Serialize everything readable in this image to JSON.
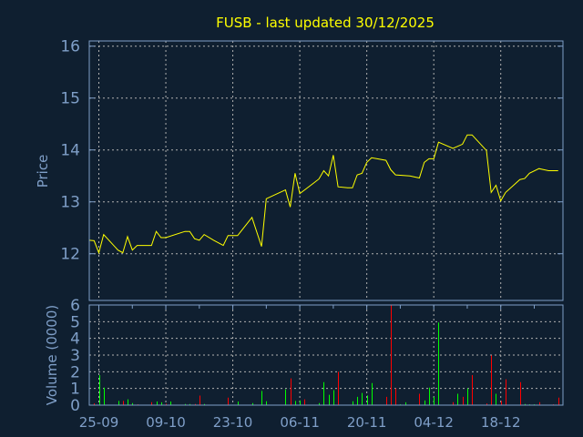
{
  "chart_data": [
    {
      "type": "line",
      "title": "FUSB - last updated 30/12/2025",
      "ylabel": "Price",
      "xlabel": "",
      "xlim": [
        "2025-09-23",
        "2025-12-31"
      ],
      "ylim": [
        11.1,
        16.1
      ],
      "yticks": [
        12,
        13,
        14,
        15,
        16
      ],
      "grid": true,
      "colors": {
        "line": "#ffff00",
        "axis": "#7f9fc8",
        "grid": "#b0b0b0",
        "background": "#0f1f30",
        "title": "#ffff00"
      },
      "points": [
        [
          "2025-09-23",
          12.26
        ],
        [
          "2025-09-24",
          12.25
        ],
        [
          "2025-09-25",
          12.02
        ],
        [
          "2025-09-26",
          12.37
        ],
        [
          "2025-09-29",
          12.07
        ],
        [
          "2025-09-30",
          12.02
        ],
        [
          "2025-10-01",
          12.33
        ],
        [
          "2025-10-02",
          12.07
        ],
        [
          "2025-10-03",
          12.16
        ],
        [
          "2025-10-06",
          12.16
        ],
        [
          "2025-10-07",
          12.43
        ],
        [
          "2025-10-08",
          12.31
        ],
        [
          "2025-10-09",
          12.31
        ],
        [
          "2025-10-13",
          12.43
        ],
        [
          "2025-10-14",
          12.43
        ],
        [
          "2025-10-15",
          12.29
        ],
        [
          "2025-10-16",
          12.26
        ],
        [
          "2025-10-17",
          12.37
        ],
        [
          "2025-10-19",
          12.26
        ],
        [
          "2025-10-21",
          12.16
        ],
        [
          "2025-10-22",
          12.35
        ],
        [
          "2025-10-24",
          12.35
        ],
        [
          "2025-10-27",
          12.7
        ],
        [
          "2025-10-29",
          12.14
        ],
        [
          "2025-10-30",
          13.06
        ],
        [
          "2025-11-03",
          13.23
        ],
        [
          "2025-11-04",
          12.9
        ],
        [
          "2025-11-05",
          13.55
        ],
        [
          "2025-11-06",
          13.16
        ],
        [
          "2025-11-07",
          13.23
        ],
        [
          "2025-11-09",
          13.37
        ],
        [
          "2025-11-10",
          13.44
        ],
        [
          "2025-11-11",
          13.6
        ],
        [
          "2025-11-12",
          13.5
        ],
        [
          "2025-11-13",
          13.9
        ],
        [
          "2025-11-14",
          13.29
        ],
        [
          "2025-11-16",
          13.27
        ],
        [
          "2025-11-17",
          13.27
        ],
        [
          "2025-11-18",
          13.52
        ],
        [
          "2025-11-19",
          13.55
        ],
        [
          "2025-11-20",
          13.76
        ],
        [
          "2025-11-21",
          13.85
        ],
        [
          "2025-11-24",
          13.8
        ],
        [
          "2025-11-25",
          13.62
        ],
        [
          "2025-11-26",
          13.52
        ],
        [
          "2025-11-29",
          13.5
        ],
        [
          "2025-12-01",
          13.46
        ],
        [
          "2025-12-02",
          13.76
        ],
        [
          "2025-12-03",
          13.83
        ],
        [
          "2025-12-04",
          13.83
        ],
        [
          "2025-12-05",
          14.15
        ],
        [
          "2025-12-08",
          14.03
        ],
        [
          "2025-12-10",
          14.11
        ],
        [
          "2025-12-11",
          14.29
        ],
        [
          "2025-12-12",
          14.29
        ],
        [
          "2025-12-15",
          13.99
        ],
        [
          "2025-12-16",
          13.18
        ],
        [
          "2025-12-17",
          13.32
        ],
        [
          "2025-12-18",
          13.02
        ],
        [
          "2025-12-19",
          13.18
        ],
        [
          "2025-12-22",
          13.43
        ],
        [
          "2025-12-23",
          13.45
        ],
        [
          "2025-12-24",
          13.55
        ],
        [
          "2025-12-26",
          13.64
        ],
        [
          "2025-12-27",
          13.62
        ],
        [
          "2025-12-28",
          13.6
        ],
        [
          "2025-12-30",
          13.6
        ]
      ]
    },
    {
      "type": "bar",
      "ylabel": "Volume (0000)",
      "xlabel": "",
      "xlim": [
        "2025-09-23",
        "2025-12-31"
      ],
      "ylim": [
        0,
        6
      ],
      "yticks": [
        0,
        1,
        2,
        3,
        4,
        5,
        6
      ],
      "xticks": [
        "25-09",
        "09-10",
        "23-10",
        "06-11",
        "20-11",
        "04-12",
        "18-12"
      ],
      "grid": true,
      "colors": {
        "up": "#00ff00",
        "down": "#ff0000"
      },
      "bars": [
        [
          "2025-09-24",
          0.1,
          "down"
        ],
        [
          "2025-09-25",
          1.8,
          "up"
        ],
        [
          "2025-09-26",
          1.05,
          "up"
        ],
        [
          "2025-09-29",
          0.25,
          "up"
        ],
        [
          "2025-09-30",
          0.25,
          "down"
        ],
        [
          "2025-10-01",
          0.35,
          "up"
        ],
        [
          "2025-10-02",
          0.12,
          "up"
        ],
        [
          "2025-10-03",
          0.05,
          "down"
        ],
        [
          "2025-10-06",
          0.18,
          "down"
        ],
        [
          "2025-10-07",
          0.22,
          "up"
        ],
        [
          "2025-10-08",
          0.17,
          "up"
        ],
        [
          "2025-10-09",
          0.08,
          "down"
        ],
        [
          "2025-10-10",
          0.22,
          "up"
        ],
        [
          "2025-10-13",
          0.07,
          "up"
        ],
        [
          "2025-10-14",
          0.07,
          "up"
        ],
        [
          "2025-10-15",
          0.07,
          "down"
        ],
        [
          "2025-10-16",
          0.57,
          "down"
        ],
        [
          "2025-10-17",
          0.07,
          "up"
        ],
        [
          "2025-10-22",
          0.45,
          "down"
        ],
        [
          "2025-10-24",
          0.22,
          "up"
        ],
        [
          "2025-10-27",
          0.12,
          "up"
        ],
        [
          "2025-10-29",
          0.85,
          "up"
        ],
        [
          "2025-10-30",
          0.23,
          "up"
        ],
        [
          "2025-11-03",
          0.95,
          "up"
        ],
        [
          "2025-11-04",
          1.6,
          "down"
        ],
        [
          "2025-11-05",
          0.25,
          "up"
        ],
        [
          "2025-11-06",
          0.28,
          "up"
        ],
        [
          "2025-11-07",
          0.35,
          "down"
        ],
        [
          "2025-11-10",
          0.12,
          "up"
        ],
        [
          "2025-11-11",
          1.38,
          "up"
        ],
        [
          "2025-11-12",
          0.62,
          "up"
        ],
        [
          "2025-11-13",
          0.9,
          "up"
        ],
        [
          "2025-11-14",
          2.0,
          "down"
        ],
        [
          "2025-11-17",
          0.23,
          "up"
        ],
        [
          "2025-11-18",
          0.5,
          "up"
        ],
        [
          "2025-11-19",
          0.73,
          "up"
        ],
        [
          "2025-11-20",
          0.58,
          "up"
        ],
        [
          "2025-11-21",
          1.32,
          "up"
        ],
        [
          "2025-11-24",
          0.5,
          "down"
        ],
        [
          "2025-11-25",
          6.0,
          "down"
        ],
        [
          "2025-11-26",
          1.0,
          "down"
        ],
        [
          "2025-11-27",
          0.05,
          "up"
        ],
        [
          "2025-11-28",
          0.17,
          "up"
        ],
        [
          "2025-12-01",
          0.68,
          "down"
        ],
        [
          "2025-12-02",
          0.28,
          "up"
        ],
        [
          "2025-12-03",
          1.05,
          "up"
        ],
        [
          "2025-12-04",
          0.5,
          "up"
        ],
        [
          "2025-12-05",
          4.95,
          "up"
        ],
        [
          "2025-12-08",
          0.18,
          "down"
        ],
        [
          "2025-12-09",
          0.68,
          "up"
        ],
        [
          "2025-12-10",
          0.5,
          "down"
        ],
        [
          "2025-12-11",
          1.0,
          "up"
        ],
        [
          "2025-12-12",
          1.8,
          "down"
        ],
        [
          "2025-12-15",
          0.1,
          "down"
        ],
        [
          "2025-12-16",
          2.98,
          "down"
        ],
        [
          "2025-12-17",
          0.68,
          "up"
        ],
        [
          "2025-12-18",
          0.25,
          "down"
        ],
        [
          "2025-12-19",
          1.55,
          "down"
        ],
        [
          "2025-12-22",
          1.38,
          "down"
        ],
        [
          "2025-12-23",
          0.07,
          "up"
        ],
        [
          "2025-12-24",
          0.05,
          "up"
        ],
        [
          "2025-12-25",
          0.05,
          "up"
        ],
        [
          "2025-12-26",
          0.18,
          "down"
        ],
        [
          "2025-12-29",
          0.05,
          "down"
        ],
        [
          "2025-12-30",
          0.45,
          "down"
        ]
      ]
    }
  ]
}
